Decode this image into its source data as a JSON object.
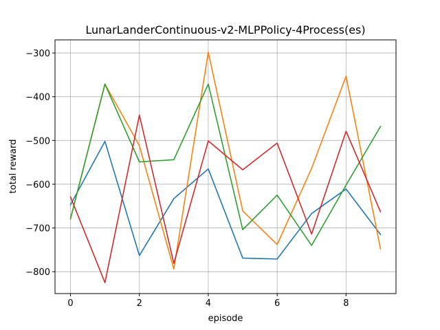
{
  "chart_data": {
    "type": "line",
    "title": "LunarLanderContinuous-v2-MLPPolicy-4Process(es)",
    "xlabel": "episode",
    "ylabel": "total reward",
    "xlim": [
      -0.45,
      9.45
    ],
    "ylim": [
      -850,
      -270
    ],
    "xticks": [
      0,
      2,
      4,
      6,
      8
    ],
    "xtick_labels": [
      "0",
      "2",
      "4",
      "6",
      "8"
    ],
    "yticks": [
      -800,
      -700,
      -600,
      -500,
      -400,
      -300
    ],
    "ytick_labels": [
      "−800",
      "−700",
      "−600",
      "−500",
      "−400",
      "−300"
    ],
    "grid": true,
    "x": [
      0,
      1,
      2,
      3,
      4,
      5,
      6,
      7,
      8,
      9
    ],
    "series": [
      {
        "color": "#1f77b4",
        "values": [
          -647,
          -502,
          -763,
          -633,
          -565,
          -769,
          -771,
          -667,
          -611,
          -715
        ]
      },
      {
        "color": "#ff7f0e",
        "values": [
          -679,
          -371,
          -512,
          -794,
          -298,
          -661,
          -738,
          -564,
          -353,
          -748
        ]
      },
      {
        "color": "#2ca02c",
        "values": [
          -679,
          -371,
          -549,
          -544,
          -371,
          -704,
          -625,
          -740,
          -602,
          -468
        ]
      },
      {
        "color": "#d62728",
        "values": [
          -629,
          -825,
          -442,
          -781,
          -501,
          -567,
          -506,
          -714,
          -479,
          -663
        ]
      }
    ]
  }
}
